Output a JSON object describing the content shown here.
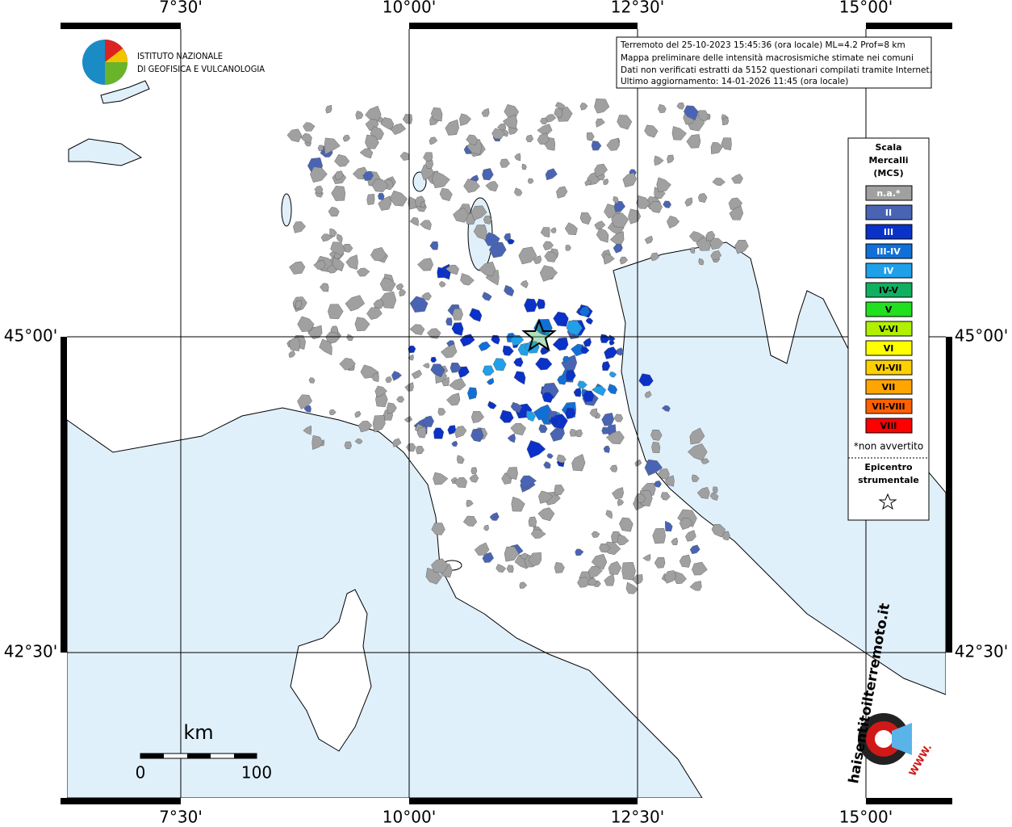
{
  "map": {
    "lon_labels": [
      "7°30'",
      "10°00'",
      "12°30'",
      "15°00'"
    ],
    "lat_labels": [
      "45°00'",
      "42°30'"
    ],
    "info": [
      "Terremoto del 25-10-2023 15:45:36 (ora locale) ML=4.2 Prof=8 km",
      "Mappa preliminare delle intensità macrosismiche stimate nei comuni",
      "Dati non verificati estratti da 5152 questionari compilati tramite Internet.",
      "Ultimo aggiornamento: 14-01-2026 11:45 (ora locale)"
    ],
    "logo": [
      "ISTITUTO NAZIONALE",
      "DI GEOFISICA E VULCANOLOGIA"
    ],
    "legend": {
      "title": [
        "Scala",
        "Mercalli",
        "(MCS)"
      ],
      "items": [
        {
          "label": "n.a.*",
          "color": "#a0a0a0"
        },
        {
          "label": "II",
          "color": "#4a64b4"
        },
        {
          "label": "III",
          "color": "#0a32c8"
        },
        {
          "label": "III-IV",
          "color": "#1070d8"
        },
        {
          "label": "IV",
          "color": "#20a0e8"
        },
        {
          "label": "IV-V",
          "color": "#10b060"
        },
        {
          "label": "V",
          "color": "#20e020"
        },
        {
          "label": "V-VI",
          "color": "#b0f000"
        },
        {
          "label": "VI",
          "color": "#ffff00"
        },
        {
          "label": "VI-VII",
          "color": "#ffd000"
        },
        {
          "label": "VII",
          "color": "#ffa500"
        },
        {
          "label": "VII-VIII",
          "color": "#ff6000"
        },
        {
          "label": "VIII",
          "color": "#ff0000"
        }
      ],
      "note": "*non avvertito",
      "epicenter": [
        "Epicentro",
        "strumentale"
      ]
    },
    "scale": {
      "unit": "km",
      "labels": [
        "0",
        "100"
      ]
    },
    "watermark": [
      "haisentitoilterremoto.it",
      "WWW."
    ]
  }
}
